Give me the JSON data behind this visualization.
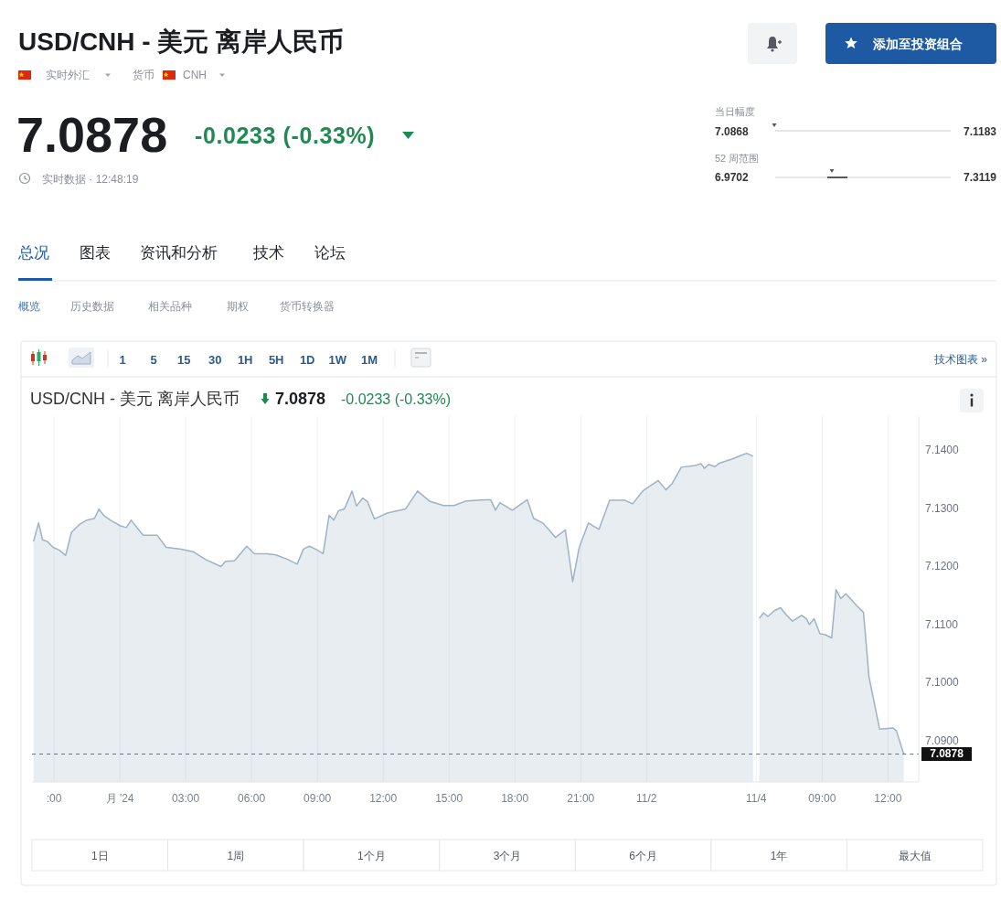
{
  "chart_data": [
    {
      "type": "other",
      "title": "USD/CNH - 美元 离岸人民币",
      "annotations": [
        "实时外汇",
        "货币",
        "CNH",
        "7.0878",
        "-0.0233 (-0.33%)",
        "实时数据 · 12:48:19",
        "添加至投资组合",
        "当日幅度",
        "7.0868",
        "7.1183",
        "52 周范围",
        "6.9702",
        "7.3119",
        "总况",
        "图表",
        "资讯和分析",
        "技术",
        "论坛",
        "概览",
        "历史数据",
        "相关品种",
        "期权",
        "货币转换器"
      ]
    },
    {
      "type": "area",
      "title": "USD/CNH - 美元 离岸人民币",
      "annotations": [
        "7.0878",
        "-0.0233 (-0.33%)",
        "1 5 15 30 1H 5H 1D 1W 1M",
        "技术图表 »",
        "1日",
        "1周",
        "1个月",
        "3个月",
        "6个月",
        "1年",
        "最大值"
      ],
      "x": [
        "2024-10-31T20:04",
        "2024-10-31T20:18",
        "2024-10-31T20:29",
        "2024-10-31T20:42",
        "2024-10-31T20:58",
        "2024-10-31T21:15",
        "2024-10-31T21:32",
        "2024-10-31T21:48",
        "2024-10-31T22:09",
        "2024-10-31T22:30",
        "2024-10-31T22:51",
        "2024-10-31T23:03",
        "2024-10-31T23:16",
        "2024-10-31T23:37",
        "2024-11-01T00:02",
        "2024-11-01T00:18",
        "2024-11-01T00:31",
        "2024-11-01T00:47",
        "2024-11-01T01:04",
        "2024-11-01T01:42",
        "2024-11-01T02:07",
        "2024-11-01T02:48",
        "2024-11-01T03:22",
        "2024-11-01T03:55",
        "2024-11-01T04:37",
        "2024-11-01T04:49",
        "2024-11-01T05:14",
        "2024-11-01T05:47",
        "2024-11-01T06:08",
        "2024-11-01T06:42",
        "2024-11-01T07:07",
        "2024-11-01T07:40",
        "2024-11-01T08:05",
        "2024-11-01T08:22",
        "2024-11-01T08:38",
        "2024-11-01T08:55",
        "2024-11-01T09:16",
        "2024-11-01T09:32",
        "2024-11-01T09:45",
        "2024-11-01T09:58",
        "2024-11-01T10:14",
        "2024-11-01T10:35",
        "2024-11-01T10:47",
        "2024-11-01T11:04",
        "2024-11-01T11:17",
        "2024-11-01T11:36",
        "2024-11-01T12:11",
        "2024-11-01T13:01",
        "2024-11-01T13:34",
        "2024-11-01T14:08",
        "2024-11-01T14:45",
        "2024-11-01T15:14",
        "2024-11-01T15:47",
        "2024-11-01T16:38",
        "2024-11-01T16:54",
        "2024-11-01T17:07",
        "2024-11-01T17:19",
        "2024-11-01T17:53",
        "2024-11-01T18:34",
        "2024-11-01T18:51",
        "2024-11-01T19:16",
        "2024-11-01T19:32",
        "2024-11-01T19:51",
        "2024-11-01T20:18",
        "2024-11-01T20:38",
        "2024-11-01T20:56",
        "2024-11-01T21:21",
        "2024-11-01T21:50",
        "2024-11-01T22:19",
        "2024-11-01T23:01",
        "2024-11-01T23:22",
        "2024-11-01T23:51",
        "2024-11-02T00:32",
        "2024-11-02T00:53",
        "2024-11-02T01:10",
        "2024-11-02T01:35",
        "2024-11-02T02:13",
        "2024-11-02T02:29",
        "2024-11-02T02:38",
        "2024-11-02T02:50",
        "2024-11-02T03:07",
        "2024-11-02T03:19",
        "2024-11-02T03:53",
        "2024-11-02T04:13",
        "2024-11-02T04:34",
        "2024-11-02T04:51"
      ],
      "series": [
        {
          "color": "#9fb2c6",
          "values": [
            7.1244,
            7.1276,
            7.1247,
            7.1244,
            7.1234,
            7.1229,
            7.122,
            7.126,
            7.1273,
            7.1281,
            7.1284,
            7.13,
            7.1289,
            7.128,
            7.1271,
            7.1268,
            7.1281,
            7.1268,
            7.1255,
            7.1255,
            7.1234,
            7.1231,
            7.1226,
            7.1213,
            7.1201,
            7.121,
            7.1211,
            7.1236,
            7.1223,
            7.1223,
            7.1221,
            7.1213,
            7.1205,
            7.1231,
            7.1236,
            7.1231,
            7.1223,
            7.1289,
            7.1281,
            7.1297,
            7.13,
            7.1331,
            7.1305,
            7.1319,
            7.1313,
            7.1283,
            7.1293,
            7.13,
            7.1331,
            7.1313,
            7.1306,
            7.1306,
            7.1314,
            7.1316,
            7.1316,
            7.1298,
            7.1311,
            7.1298,
            7.1316,
            7.1284,
            7.1276,
            7.1265,
            7.1251,
            7.1264,
            7.1175,
            7.1234,
            7.1276,
            7.1265,
            7.1315,
            7.1315,
            7.1309,
            7.1332,
            7.1349,
            7.1333,
            7.1344,
            7.1372,
            7.1375,
            7.1378,
            7.137,
            7.1377,
            7.1373,
            7.1379,
            7.1386,
            7.1391,
            7.1396,
            7.1391
          ]
        }
      ],
      "xlim": [
        "2024-10-31T20:00",
        "2024-11-02T05:00"
      ],
      "ylim": [
        7.083,
        7.146
      ],
      "xticks": [
        {
          "value": "2024-10-31T21:00",
          "label": ":00"
        },
        {
          "value": "2024-11-01",
          "label": "月 '24"
        },
        {
          "value": "2024-11-01T03:00",
          "label": "03:00"
        },
        {
          "value": "2024-11-01T06:00",
          "label": "06:00"
        },
        {
          "value": "2024-11-01T09:00",
          "label": "09:00"
        },
        {
          "value": "2024-11-01T12:00",
          "label": "12:00"
        },
        {
          "value": "2024-11-01T15:00",
          "label": "15:00"
        },
        {
          "value": "2024-11-01T18:00",
          "label": "18:00"
        },
        {
          "value": "2024-11-01T21:00",
          "label": "21:00"
        },
        {
          "value": "2024-11-02",
          "label": "11/2"
        }
      ],
      "ref_lines": [
        {
          "axis": "y",
          "value": 7.0878,
          "line_style": "dashed"
        }
      ],
      "grid": "x",
      "tick_labels": "x"
    },
    {
      "type": "area",
      "x": [
        "2024-11-04T06:08",
        "2024-11-04T06:20",
        "2024-11-04T06:32",
        "2024-11-04T06:49",
        "2024-11-04T07:06",
        "2024-11-04T07:23",
        "2024-11-04T07:39",
        "2024-11-04T08:04",
        "2024-11-04T08:17",
        "2024-11-04T08:25",
        "2024-11-04T08:38",
        "2024-11-04T08:54",
        "2024-11-04T09:07",
        "2024-11-04T09:26",
        "2024-11-04T09:38",
        "2024-11-04T09:51",
        "2024-11-04T10:05",
        "2024-11-04T10:34",
        "2024-11-04T10:53",
        "2024-11-04T11:08",
        "2024-11-04T11:37",
        "2024-11-04T12:14",
        "2024-11-04T12:23",
        "2024-11-04T12:43"
      ],
      "series": [
        {
          "color": "#9fb2c6",
          "values": [
            7.1112,
            7.1121,
            7.1115,
            7.1125,
            7.113,
            7.1117,
            7.1107,
            7.1117,
            7.1111,
            7.1101,
            7.1111,
            7.1085,
            7.1084,
            7.1078,
            7.1161,
            7.1146,
            7.1154,
            7.1134,
            7.1122,
            7.1011,
            7.0921,
            7.0923,
            7.0918,
            7.0878
          ]
        }
      ],
      "xlim": [
        "2024-11-04T06:00",
        "2024-11-04T13:24"
      ],
      "ylim": [
        7.083,
        7.146
      ],
      "xticks": [
        {
          "value": "2024-11-04T06:00",
          "label": "11/4"
        },
        {
          "value": "2024-11-04T09:00",
          "label": "09:00"
        },
        {
          "value": "2024-11-04T12:00",
          "label": "12:00"
        }
      ],
      "yticks": [
        {
          "value": 7.09,
          "label": "7.0900"
        },
        {
          "value": 7.1,
          "label": "7.1000"
        },
        {
          "value": 7.11,
          "label": "7.1100"
        },
        {
          "value": 7.12,
          "label": "7.1200"
        },
        {
          "value": 7.13,
          "label": "7.1300"
        },
        {
          "value": 7.14,
          "label": "7.1400"
        }
      ],
      "ref_lines": [
        {
          "axis": "y",
          "value": 7.0878,
          "label": "7.0878",
          "line_style": "dashed"
        }
      ],
      "grid": "x"
    }
  ]
}
